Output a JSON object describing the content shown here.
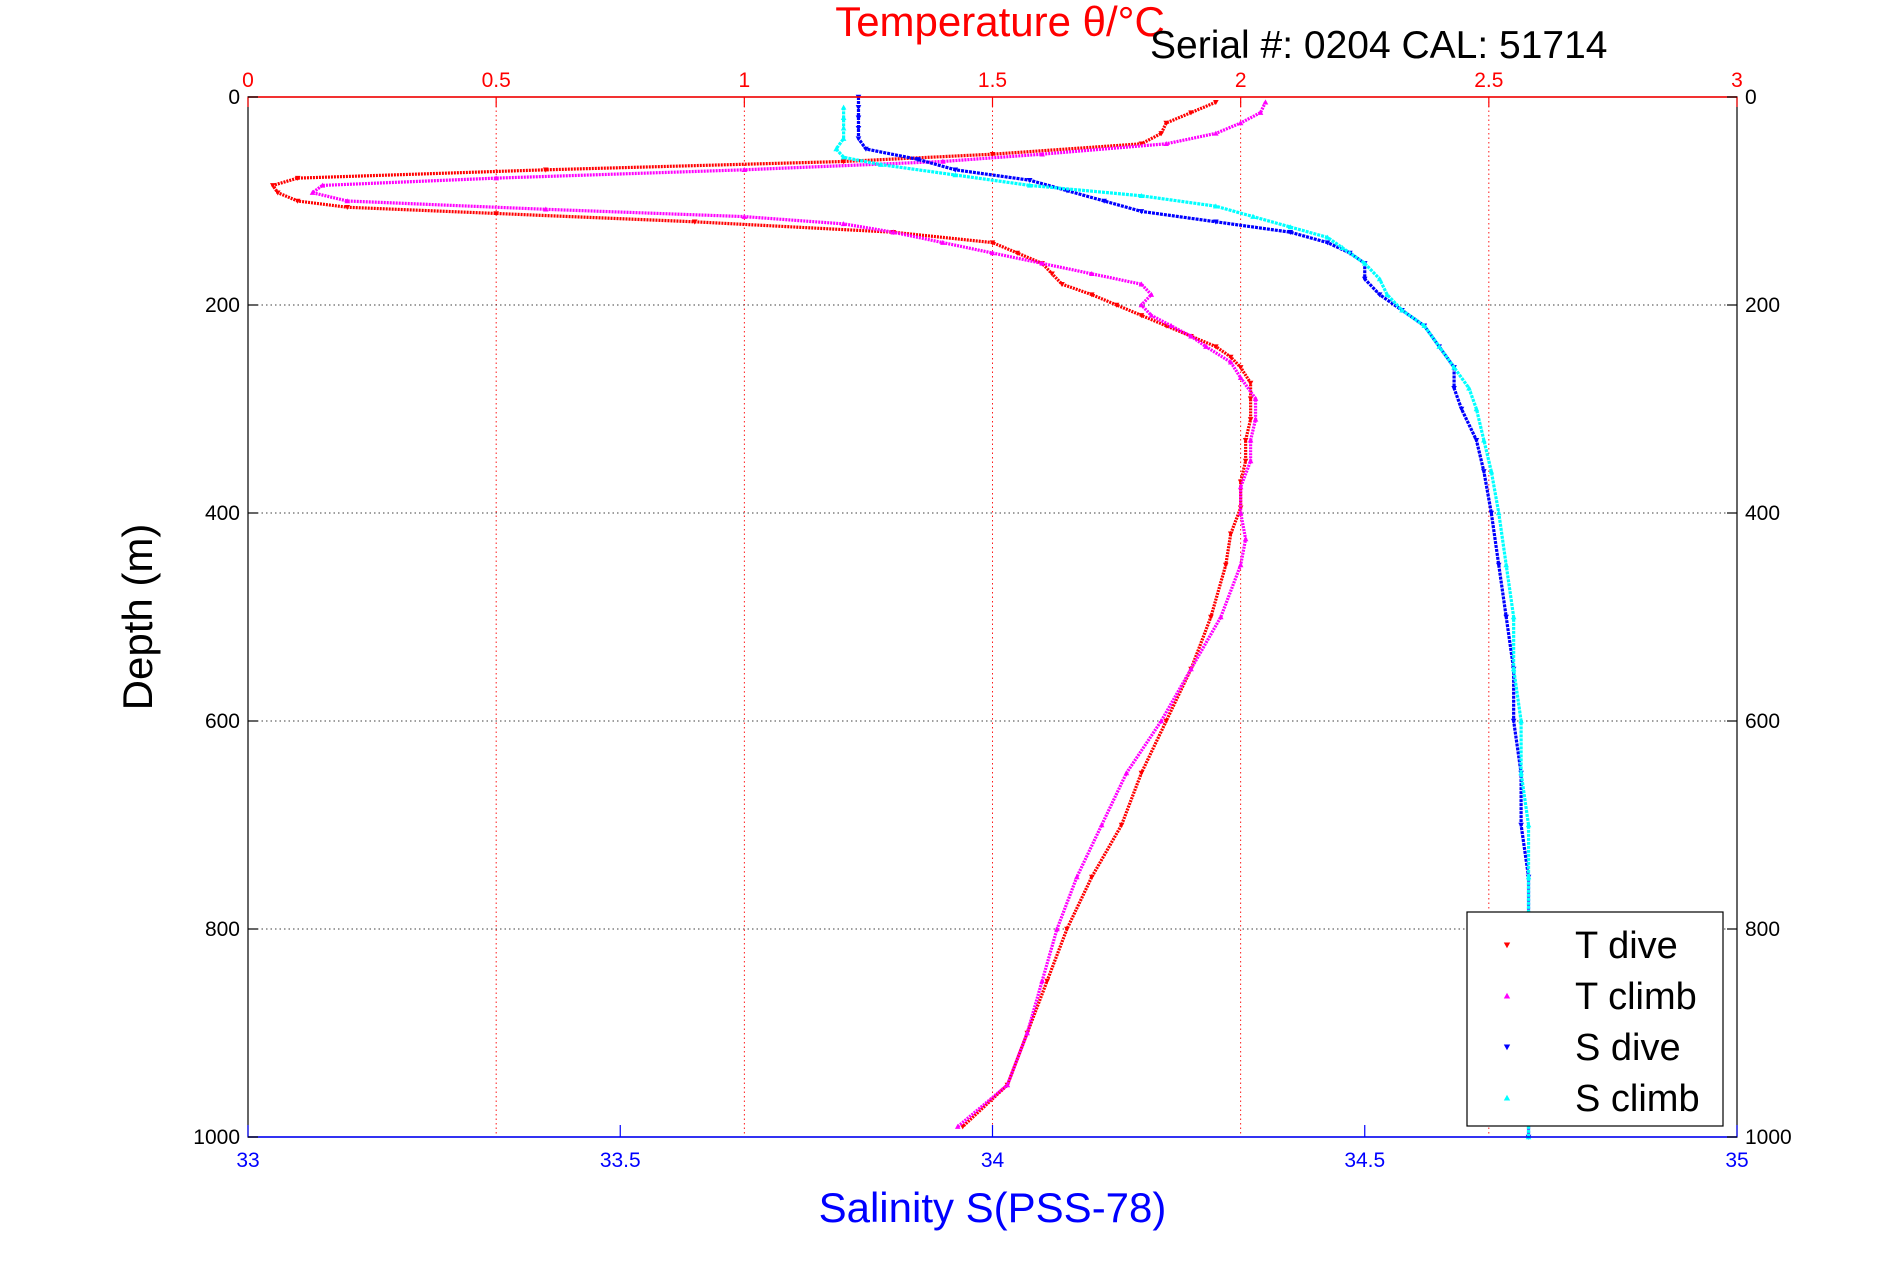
{
  "meta": {
    "serial_label": "Serial #: 0204   CAL: 51714"
  },
  "chart_data": {
    "type": "scatter",
    "top_axis": {
      "label": "Temperature θ/°C",
      "range": [
        0,
        3
      ],
      "ticks": [
        0,
        0.5,
        1,
        1.5,
        2,
        2.5,
        3
      ],
      "tick_labels": [
        "0",
        "0.5",
        "1",
        "1.5",
        "2",
        "2.5",
        "3"
      ],
      "color": "#ff0000",
      "grid": true
    },
    "bottom_axis": {
      "label": "Salinity S(PSS-78)",
      "range": [
        33,
        35
      ],
      "ticks": [
        33,
        33.5,
        34,
        34.5,
        35
      ],
      "tick_labels": [
        "33",
        "33.5",
        "34",
        "34.5",
        "35"
      ],
      "color": "#0000ff"
    },
    "y_axis": {
      "label": "Depth (m)",
      "range": [
        0,
        1000
      ],
      "reversed": true,
      "ticks": [
        0,
        200,
        400,
        600,
        800,
        1000
      ],
      "tick_labels": [
        "0",
        "200",
        "400",
        "600",
        "800",
        "1000"
      ],
      "grid": true
    },
    "legend": {
      "position": "bottom-right",
      "entries": [
        "T dive",
        "T climb",
        "S dive",
        "S climb"
      ]
    },
    "series": [
      {
        "name": "T dive",
        "axis": "top",
        "color": "#ff0000",
        "marker": "triangle-down",
        "depth": [
          5,
          15,
          25,
          35,
          45,
          55,
          62,
          70,
          78,
          85,
          92,
          100,
          106,
          112,
          120,
          130,
          140,
          150,
          160,
          170,
          180,
          190,
          200,
          210,
          220,
          230,
          240,
          250,
          260,
          275,
          290,
          310,
          330,
          350,
          370,
          395,
          420,
          450,
          500,
          550,
          600,
          650,
          700,
          750,
          800,
          850,
          900,
          950,
          990
        ],
        "temperature": [
          1.95,
          1.9,
          1.85,
          1.84,
          1.8,
          1.5,
          1.2,
          0.6,
          0.1,
          0.05,
          0.06,
          0.1,
          0.2,
          0.5,
          0.9,
          1.3,
          1.5,
          1.55,
          1.6,
          1.62,
          1.64,
          1.7,
          1.75,
          1.8,
          1.85,
          1.9,
          1.95,
          1.98,
          2.0,
          2.02,
          2.02,
          2.02,
          2.01,
          2.01,
          2.0,
          2.0,
          1.98,
          1.97,
          1.94,
          1.9,
          1.85,
          1.8,
          1.76,
          1.7,
          1.65,
          1.61,
          1.57,
          1.53,
          1.44
        ]
      },
      {
        "name": "T climb",
        "axis": "top",
        "color": "#ff00ff",
        "marker": "triangle-up",
        "depth": [
          5,
          15,
          25,
          35,
          45,
          55,
          62,
          70,
          78,
          85,
          92,
          100,
          108,
          115,
          122,
          130,
          140,
          150,
          160,
          170,
          180,
          190,
          200,
          210,
          220,
          230,
          240,
          255,
          270,
          290,
          310,
          330,
          350,
          375,
          400,
          425,
          450,
          500,
          550,
          600,
          650,
          700,
          750,
          800,
          850,
          900,
          950,
          990
        ],
        "temperature": [
          2.05,
          2.04,
          2.0,
          1.95,
          1.85,
          1.6,
          1.4,
          1.0,
          0.5,
          0.15,
          0.13,
          0.2,
          0.6,
          1.0,
          1.2,
          1.3,
          1.4,
          1.5,
          1.6,
          1.7,
          1.8,
          1.82,
          1.8,
          1.82,
          1.86,
          1.9,
          1.93,
          1.98,
          2.0,
          2.03,
          2.03,
          2.02,
          2.02,
          2.0,
          2.0,
          2.01,
          2.0,
          1.96,
          1.9,
          1.84,
          1.77,
          1.72,
          1.67,
          1.63,
          1.6,
          1.57,
          1.53,
          1.43
        ]
      },
      {
        "name": "S dive",
        "axis": "bottom",
        "color": "#0000ff",
        "marker": "triangle-down",
        "depth": [
          0,
          10,
          20,
          30,
          40,
          50,
          60,
          70,
          80,
          90,
          100,
          110,
          120,
          130,
          140,
          150,
          160,
          175,
          190,
          205,
          220,
          240,
          260,
          280,
          300,
          330,
          360,
          400,
          450,
          500,
          550,
          600,
          650,
          700,
          750,
          800,
          850,
          900,
          950,
          1000
        ],
        "salinity": [
          33.82,
          33.82,
          33.82,
          33.82,
          33.82,
          33.83,
          33.9,
          33.95,
          34.05,
          34.1,
          34.15,
          34.2,
          34.3,
          34.4,
          34.45,
          34.48,
          34.5,
          34.5,
          34.52,
          34.55,
          34.58,
          34.6,
          34.62,
          34.62,
          34.63,
          34.65,
          34.66,
          34.67,
          34.68,
          34.69,
          34.7,
          34.7,
          34.71,
          34.71,
          34.72,
          34.72,
          34.72,
          34.72,
          34.72,
          34.72
        ]
      },
      {
        "name": "S climb",
        "axis": "bottom",
        "color": "#00ffff",
        "marker": "triangle-up",
        "depth": [
          10,
          20,
          30,
          40,
          50,
          58,
          65,
          75,
          85,
          95,
          105,
          115,
          125,
          135,
          145,
          160,
          175,
          190,
          205,
          220,
          240,
          260,
          280,
          300,
          330,
          360,
          400,
          450,
          500,
          550,
          600,
          650,
          700,
          750,
          800,
          850,
          900,
          950,
          1000
        ],
        "salinity": [
          33.8,
          33.8,
          33.8,
          33.8,
          33.79,
          33.8,
          33.85,
          33.95,
          34.05,
          34.2,
          34.3,
          34.35,
          34.4,
          34.45,
          34.47,
          34.5,
          34.52,
          34.53,
          34.55,
          34.58,
          34.6,
          34.62,
          34.64,
          34.65,
          34.66,
          34.67,
          34.68,
          34.69,
          34.7,
          34.7,
          34.71,
          34.71,
          34.72,
          34.72,
          34.72,
          34.72,
          34.72,
          34.72,
          34.72
        ]
      }
    ]
  }
}
